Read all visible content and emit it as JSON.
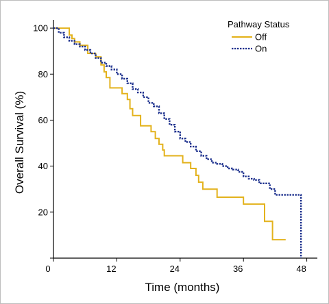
{
  "chart_data": {
    "type": "line",
    "title": "",
    "xlabel": "Time (months)",
    "ylabel": "Overall Survival (%)",
    "xlim": [
      0,
      50
    ],
    "ylim": [
      0,
      103
    ],
    "x_ticks": [
      0,
      12,
      24,
      36,
      48
    ],
    "x_tick_labels": [
      "0",
      "12",
      "24",
      "36",
      "48"
    ],
    "y_ticks": [
      0,
      20,
      40,
      60,
      80,
      100
    ],
    "y_tick_labels": [
      "",
      "20",
      "40",
      "60",
      "80",
      "100"
    ],
    "grid": false,
    "legend": {
      "title": "Pathway Status",
      "placement": "top-right"
    },
    "series": [
      {
        "name": "Off",
        "color": "#E3B21C",
        "style": "solid",
        "x": [
          0,
          3,
          3.5,
          4,
          5,
          6.5,
          8,
          9,
          9.6,
          10,
          10.7,
          13,
          14,
          14.5,
          15,
          16.5,
          18.5,
          19.3,
          20,
          20.7,
          21,
          24.5,
          26,
          27,
          27.5,
          28.3,
          31,
          36,
          40,
          41.5,
          44
        ],
        "y": [
          100,
          97,
          95.5,
          94,
          92.5,
          89,
          87.5,
          84,
          81,
          78.5,
          74,
          71.5,
          69,
          65,
          62,
          57.5,
          55,
          52,
          49.5,
          47,
          44.5,
          41.5,
          39,
          36,
          33,
          30,
          26.5,
          23.5,
          16,
          8,
          8
        ]
      },
      {
        "name": "On",
        "color": "#1A2E8C",
        "style": "dotted",
        "x": [
          0,
          1,
          2,
          3,
          4,
          5,
          6,
          7,
          8,
          9,
          10,
          11,
          12,
          13,
          14,
          15,
          16,
          17,
          18,
          19,
          20,
          21,
          22,
          23,
          24,
          25,
          26,
          27,
          28,
          29,
          30,
          31,
          32,
          33,
          34,
          35,
          36,
          37,
          38,
          39,
          40,
          41,
          42,
          43,
          44,
          45,
          46,
          46.9,
          46.9
        ],
        "y": [
          100,
          98,
          96,
          94.5,
          93,
          92,
          90.5,
          89,
          87,
          85,
          83.5,
          82,
          80,
          78,
          76,
          73.5,
          72,
          70,
          67.5,
          66,
          63,
          60.5,
          58,
          55,
          52,
          50.5,
          48.5,
          46.5,
          44.5,
          43,
          41.5,
          41,
          40,
          39,
          38.5,
          37.5,
          35.5,
          34.5,
          34,
          32.5,
          32.5,
          30,
          27.5,
          27.5,
          27.5,
          27.5,
          27.5,
          27.5,
          0
        ]
      }
    ]
  }
}
